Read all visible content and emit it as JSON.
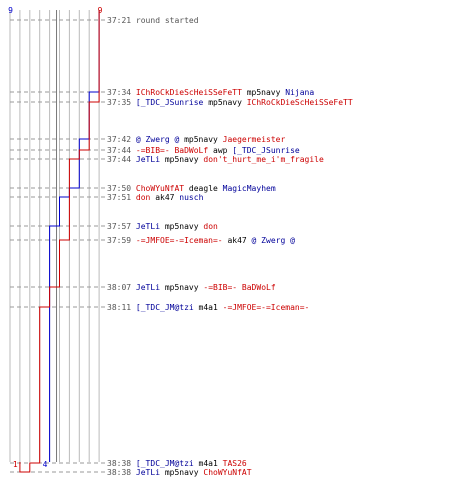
{
  "colors": {
    "team_blue": "#0000cc",
    "team_red": "#cc0000",
    "blue_text": "#000099",
    "red_text": "#cc0000",
    "time_text": "#555555",
    "gridline": "#bbbbbb"
  },
  "chart_data": {
    "type": "line",
    "xlabel": "",
    "ylabel": "",
    "x_range": [
      0,
      9
    ],
    "series": [
      {
        "color": "#0000cc",
        "start_label": "9",
        "end_label": "4",
        "steps": [
          {
            "time": "37:34",
            "value": 8
          },
          {
            "time": "37:42",
            "value": 7
          },
          {
            "time": "37:50",
            "value": 6
          },
          {
            "time": "37:51",
            "value": 5
          },
          {
            "time": "37:57",
            "value": 4
          }
        ],
        "end_value": 4
      },
      {
        "color": "#cc0000",
        "start_label": "9",
        "end_label": "1",
        "steps": [
          {
            "time": "37:35",
            "value": 8
          },
          {
            "time": "37:44",
            "value": 7
          },
          {
            "time": "37:44",
            "value": 6
          },
          {
            "time": "37:59",
            "value": 5
          },
          {
            "time": "38:07",
            "value": 4
          },
          {
            "time": "38:11",
            "value": 3
          },
          {
            "time": "38:38",
            "value": 2
          },
          {
            "time": "38:38",
            "value": 1
          }
        ],
        "end_value": 1
      }
    ]
  },
  "events": [
    {
      "time": "37:21",
      "parts": [
        {
          "text": "round started",
          "color": "gray"
        }
      ]
    },
    {
      "time": "37:34",
      "parts": [
        {
          "text": "IChRoCkDieScHeiSSeFeTT",
          "color": "red"
        },
        {
          "text": "mp5navy",
          "color": "black"
        },
        {
          "text": "Nijana",
          "color": "blue"
        }
      ]
    },
    {
      "time": "37:35",
      "parts": [
        {
          "text": "[_TDC_JSunrise",
          "color": "blue"
        },
        {
          "text": "mp5navy",
          "color": "black"
        },
        {
          "text": "IChRoCkDieScHeiSSeFeTT",
          "color": "red"
        }
      ]
    },
    {
      "time": "37:42",
      "parts": [
        {
          "text": "@  Zwerg  @",
          "color": "blue"
        },
        {
          "text": "mp5navy",
          "color": "black"
        },
        {
          "text": "Jaegermeister",
          "color": "red"
        }
      ]
    },
    {
      "time": "37:44",
      "parts": [
        {
          "text": "-=BIB=- BaDWoLf",
          "color": "red"
        },
        {
          "text": "awp",
          "color": "black"
        },
        {
          "text": "[_TDC_JSunrise",
          "color": "blue"
        }
      ]
    },
    {
      "time": "37:44",
      "parts": [
        {
          "text": "JeTLi",
          "color": "blue"
        },
        {
          "text": "mp5navy",
          "color": "black"
        },
        {
          "text": "don't_hurt_me_i'm_fragile",
          "color": "red"
        }
      ]
    },
    {
      "time": "37:50",
      "parts": [
        {
          "text": "ChoWYuNfAT",
          "color": "red"
        },
        {
          "text": "deagle",
          "color": "black"
        },
        {
          "text": "MagicMayhem",
          "color": "blue"
        }
      ]
    },
    {
      "time": "37:51",
      "parts": [
        {
          "text": "don",
          "color": "red"
        },
        {
          "text": "ak47",
          "color": "black"
        },
        {
          "text": "nusch",
          "color": "blue"
        }
      ]
    },
    {
      "time": "37:57",
      "parts": [
        {
          "text": "JeTLi",
          "color": "blue"
        },
        {
          "text": "mp5navy",
          "color": "black"
        },
        {
          "text": "don",
          "color": "red"
        }
      ]
    },
    {
      "time": "37:59",
      "parts": [
        {
          "text": "-=JMFOE=-=Iceman=-",
          "color": "red"
        },
        {
          "text": "ak47",
          "color": "black"
        },
        {
          "text": "@  Zwerg  @",
          "color": "blue"
        }
      ]
    },
    {
      "time": "38:07",
      "parts": [
        {
          "text": "JeTLi",
          "color": "blue"
        },
        {
          "text": "mp5navy",
          "color": "black"
        },
        {
          "text": "-=BIB=- BaDWoLf",
          "color": "red"
        }
      ]
    },
    {
      "time": "38:11",
      "parts": [
        {
          "text": "[_TDC_JM@tzi",
          "color": "blue"
        },
        {
          "text": "m4a1",
          "color": "black"
        },
        {
          "text": "-=JMFOE=-=Iceman=-",
          "color": "red"
        }
      ]
    },
    {
      "time": "38:38",
      "parts": [
        {
          "text": "[_TDC_JM@tzi",
          "color": "blue"
        },
        {
          "text": "m4a1",
          "color": "black"
        },
        {
          "text": "TAS26",
          "color": "red"
        }
      ]
    },
    {
      "time": "38:38",
      "parts": [
        {
          "text": "JeTLi",
          "color": "blue"
        },
        {
          "text": "mp5navy",
          "color": "black"
        },
        {
          "text": "ChoWYuNfAT",
          "color": "red"
        }
      ]
    }
  ]
}
